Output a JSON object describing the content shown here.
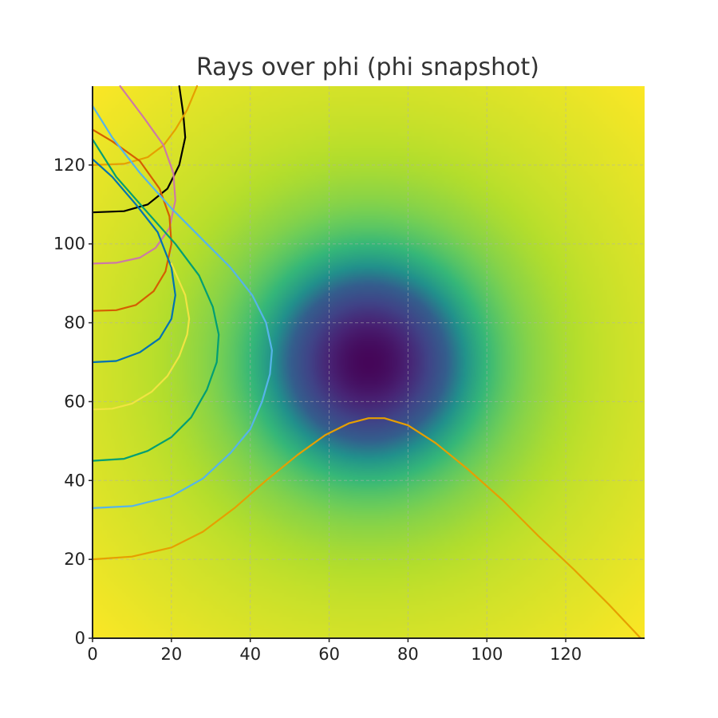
{
  "chart_data": {
    "type": "heatmap",
    "title": "Rays over phi (phi snapshot)",
    "xlabel": "",
    "ylabel": "",
    "xlim": [
      0,
      140
    ],
    "ylim": [
      0,
      140
    ],
    "x_ticks": [
      0,
      20,
      40,
      60,
      80,
      100,
      120
    ],
    "y_ticks": [
      0,
      20,
      40,
      60,
      80,
      100,
      120
    ],
    "grid": true,
    "colormap": "viridis",
    "field": {
      "center": [
        70,
        70
      ],
      "minimum_at_center": true
    },
    "series": [
      {
        "color": "#000000",
        "points": [
          [
            0,
            108
          ],
          [
            8,
            108.3
          ],
          [
            14,
            110
          ],
          [
            19,
            114
          ],
          [
            22,
            120
          ],
          [
            23.5,
            127
          ],
          [
            23,
            133
          ],
          [
            22,
            140
          ]
        ]
      },
      {
        "color": "#e69f00",
        "points": [
          [
            0,
            120
          ],
          [
            8,
            120.3
          ],
          [
            14,
            122
          ],
          [
            18,
            125
          ],
          [
            21,
            129
          ],
          [
            24,
            134
          ],
          [
            26.5,
            140
          ]
        ]
      },
      {
        "color": "#cc79a7",
        "points": [
          [
            0,
            95
          ],
          [
            6,
            95.2
          ],
          [
            12,
            96.5
          ],
          [
            16,
            99
          ],
          [
            19.5,
            104
          ],
          [
            21,
            111
          ],
          [
            20.5,
            118
          ],
          [
            18,
            125
          ],
          [
            13,
            132
          ],
          [
            7,
            140
          ]
        ]
      },
      {
        "color": "#d55e00",
        "points": [
          [
            0,
            83
          ],
          [
            6,
            83.2
          ],
          [
            11,
            84.5
          ],
          [
            15.5,
            88
          ],
          [
            18.5,
            93
          ],
          [
            20,
            100
          ],
          [
            19.5,
            107
          ],
          [
            17,
            114
          ],
          [
            12,
            121
          ],
          [
            5,
            126
          ],
          [
            0,
            129
          ]
        ]
      },
      {
        "color": "#0072b2",
        "points": [
          [
            0,
            70
          ],
          [
            6,
            70.3
          ],
          [
            12,
            72.5
          ],
          [
            17,
            76
          ],
          [
            20,
            81
          ],
          [
            21,
            87
          ],
          [
            20,
            94
          ],
          [
            16.5,
            103
          ],
          [
            11,
            110
          ],
          [
            5,
            117
          ],
          [
            0,
            121.5
          ]
        ]
      },
      {
        "color": "#f0e442",
        "points": [
          [
            0,
            58
          ],
          [
            5,
            58.2
          ],
          [
            10,
            59.5
          ],
          [
            15,
            62.5
          ],
          [
            19,
            66.5
          ],
          [
            22,
            71.5
          ],
          [
            24,
            77
          ],
          [
            24.5,
            81
          ],
          [
            23.5,
            87
          ],
          [
            20,
            95
          ]
        ]
      },
      {
        "color": "#009e73",
        "points": [
          [
            0,
            45
          ],
          [
            8,
            45.5
          ],
          [
            14,
            47.5
          ],
          [
            20,
            51
          ],
          [
            25,
            56
          ],
          [
            29,
            63
          ],
          [
            31.5,
            70
          ],
          [
            32,
            77
          ],
          [
            30.5,
            84
          ],
          [
            27,
            92
          ],
          [
            21,
            100
          ],
          [
            13,
            109
          ],
          [
            6,
            117
          ],
          [
            0,
            126.5
          ]
        ]
      },
      {
        "color": "#56b4e9",
        "points": [
          [
            0,
            33
          ],
          [
            10,
            33.5
          ],
          [
            20,
            36
          ],
          [
            28,
            40.5
          ],
          [
            35,
            47
          ],
          [
            40,
            53
          ],
          [
            43,
            60
          ],
          [
            45,
            67
          ],
          [
            45.5,
            73
          ],
          [
            44,
            80
          ],
          [
            40.5,
            87
          ],
          [
            35,
            94
          ],
          [
            28,
            101
          ],
          [
            20,
            109
          ],
          [
            12,
            118
          ],
          [
            5,
            127
          ],
          [
            0,
            135
          ]
        ]
      },
      {
        "color": "#e69f00",
        "points": [
          [
            0,
            20
          ],
          [
            10,
            20.7
          ],
          [
            20,
            23
          ],
          [
            28,
            27
          ],
          [
            36,
            33
          ],
          [
            44,
            40
          ],
          [
            52,
            46.5
          ],
          [
            59,
            51.5
          ],
          [
            65,
            54.5
          ],
          [
            70,
            55.8
          ],
          [
            74,
            55.8
          ],
          [
            80,
            54
          ],
          [
            87,
            49.5
          ],
          [
            95,
            43
          ],
          [
            104,
            35
          ],
          [
            113,
            26
          ],
          [
            122,
            17.5
          ],
          [
            131,
            8.5
          ],
          [
            139,
            0
          ]
        ]
      }
    ]
  }
}
